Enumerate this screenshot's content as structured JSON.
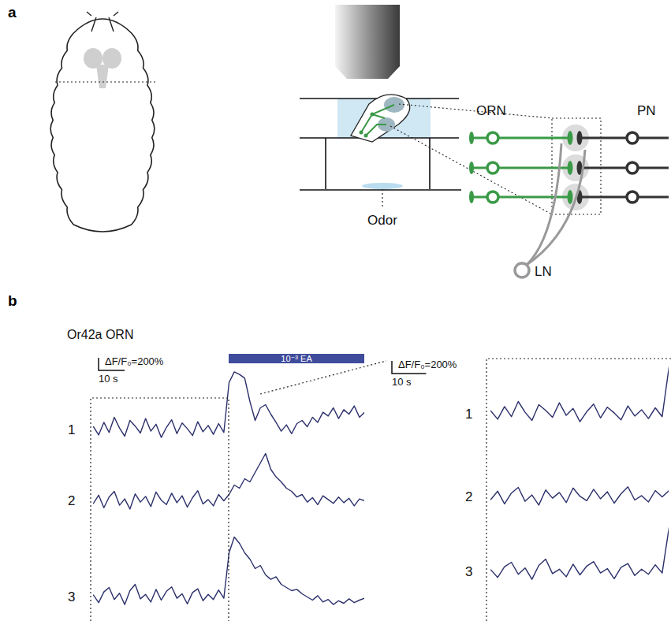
{
  "figure": {
    "panel_a": {
      "letter": "a",
      "labels": {
        "orn": "ORN",
        "pn": "PN",
        "ln": "LN",
        "odor": "Odor"
      }
    },
    "panel_b": {
      "letter": "b"
    }
  },
  "chart_data": {
    "type": "line",
    "title": "Or42a ORN",
    "x": [
      0,
      2,
      4,
      6,
      8,
      10,
      12,
      14,
      16,
      18,
      20,
      22,
      24,
      26,
      28,
      30,
      32,
      34,
      36,
      38,
      40,
      42,
      44,
      46,
      48,
      50,
      52,
      54,
      56,
      58,
      60,
      62,
      64,
      66,
      68,
      70,
      72,
      74,
      76,
      78,
      80,
      82,
      84,
      86,
      88,
      90,
      92,
      94,
      96,
      98,
      100,
      102,
      104
    ],
    "series": [
      {
        "name": "1",
        "color": "#2b2f6b",
        "values": [
          50,
          -80,
          120,
          -40,
          200,
          30,
          -100,
          150,
          60,
          -50,
          180,
          -20,
          90,
          -120,
          40,
          160,
          -60,
          110,
          20,
          -90,
          130,
          -30,
          70,
          -70,
          100,
          -40,
          750,
          920,
          880,
          820,
          450,
          150,
          350,
          400,
          250,
          120,
          -20,
          80,
          -60,
          100,
          150,
          50,
          200,
          120,
          280,
          220,
          350,
          180,
          320,
          250,
          380,
          200,
          280
        ]
      },
      {
        "name": "2",
        "color": "#2b2f6b",
        "values": [
          -40,
          90,
          -110,
          60,
          150,
          -70,
          30,
          -130,
          110,
          -20,
          70,
          -90,
          140,
          10,
          -60,
          120,
          -30,
          80,
          -100,
          50,
          160,
          -50,
          20,
          -80,
          100,
          0,
          100,
          250,
          200,
          350,
          300,
          450,
          600,
          750,
          500,
          380,
          300,
          200,
          150,
          60,
          100,
          -20,
          50,
          -60,
          80,
          20,
          -40,
          60,
          -30,
          40,
          -80,
          30,
          0
        ]
      },
      {
        "name": "3",
        "color": "#2b2f6b",
        "values": [
          30,
          -90,
          80,
          150,
          -40,
          60,
          -120,
          100,
          200,
          -30,
          40,
          -80,
          120,
          -50,
          90,
          160,
          -20,
          50,
          -110,
          70,
          130,
          -60,
          40,
          -40,
          110,
          -20,
          700,
          950,
          850,
          700,
          600,
          450,
          500,
          350,
          280,
          320,
          200,
          150,
          100,
          120,
          50,
          0,
          -50,
          20,
          -80,
          -40,
          -120,
          -60,
          -100,
          -30,
          -90,
          -50,
          -20
        ]
      }
    ],
    "xlim": [
      0,
      104
    ],
    "ylim": [
      -300,
      1000
    ],
    "tick_labels": false,
    "odor": {
      "label": "10⁻³ EA",
      "start": 52,
      "end": 104,
      "color": "#3f4c9c"
    },
    "scale_bar": {
      "x": 10,
      "y": 200,
      "x_label": "10 s",
      "y_label": "ΔF/F₀=200%"
    },
    "zoom": {
      "xlim": [
        0,
        52
      ]
    }
  }
}
